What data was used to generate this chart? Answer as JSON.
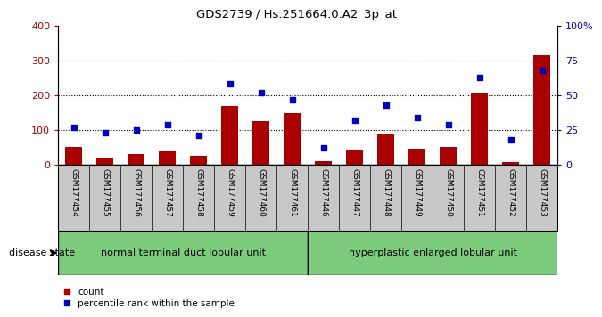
{
  "title": "GDS2739 / Hs.251664.0.A2_3p_at",
  "samples": [
    "GSM177454",
    "GSM177455",
    "GSM177456",
    "GSM177457",
    "GSM177458",
    "GSM177459",
    "GSM177460",
    "GSM177461",
    "GSM177446",
    "GSM177447",
    "GSM177448",
    "GSM177449",
    "GSM177450",
    "GSM177451",
    "GSM177452",
    "GSM177453"
  ],
  "counts": [
    50,
    18,
    30,
    38,
    25,
    170,
    125,
    148,
    10,
    40,
    90,
    47,
    52,
    205,
    8,
    315
  ],
  "percentiles": [
    27,
    23,
    25,
    29,
    21,
    58,
    52,
    47,
    12,
    32,
    43,
    34,
    29,
    63,
    18,
    68
  ],
  "group1_label": "normal terminal duct lobular unit",
  "group2_label": "hyperplastic enlarged lobular unit",
  "group1_count": 8,
  "group2_count": 8,
  "bar_color": "#aa0000",
  "dot_color": "#0000bb",
  "ylim_left": [
    0,
    400
  ],
  "ylim_right": [
    0,
    100
  ],
  "yticks_left": [
    0,
    100,
    200,
    300,
    400
  ],
  "yticks_right": [
    0,
    25,
    50,
    75,
    100
  ],
  "yticklabels_right": [
    "0",
    "25",
    "50",
    "75",
    "100%"
  ],
  "grid_values": [
    100,
    200,
    300
  ],
  "bg_color": "#ffffff",
  "tick_label_bg": "#c8c8c8",
  "group_bg": "#7dcc7d",
  "disease_state_label": "disease state"
}
